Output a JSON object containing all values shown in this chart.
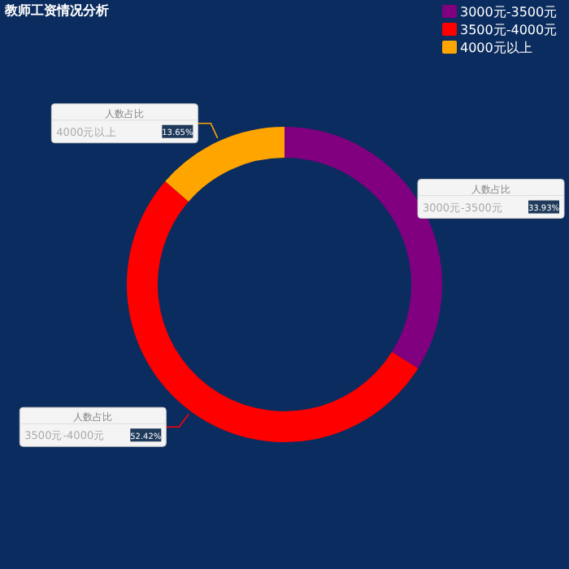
{
  "chart_data": {
    "type": "donut",
    "title": "教师工资情况分析",
    "categories": [
      "3000元-3500元",
      "3500元-4000元",
      "4000元以上"
    ],
    "values": [
      33.93,
      52.42,
      13.65
    ],
    "colors": [
      "#800080",
      "#ff0000",
      "#ffa500"
    ],
    "value_labels": [
      "33.93%",
      "52.42%",
      "13.65%"
    ],
    "annotations": [
      "人数占比"
    ],
    "legend": "top right"
  }
}
